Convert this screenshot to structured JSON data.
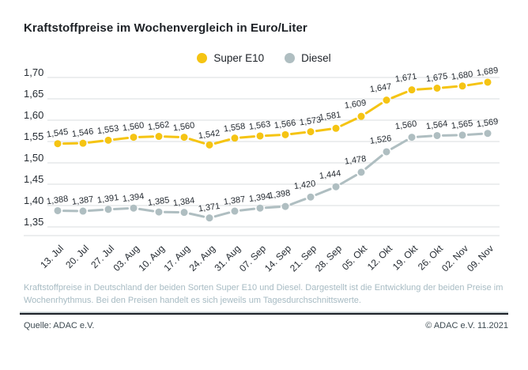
{
  "title": "Kraftstoffpreise im Wochenvergleich in Euro/Liter",
  "legend": [
    {
      "label": "Super E10",
      "color": "#F5C413"
    },
    {
      "label": "Diesel",
      "color": "#AFBEC1"
    }
  ],
  "chart_data": {
    "type": "line",
    "title": "Kraftstoffpreise im Wochenvergleich in Euro/Liter",
    "x": [
      "13. Jul",
      "20. Jul",
      "27. Jul",
      "03. Aug",
      "10. Aug",
      "17. Aug",
      "24. Aug",
      "31. Aug",
      "07. Sep",
      "14. Sep",
      "21. Sep",
      "28. Sep",
      "05. Okt",
      "12. Okt",
      "19. Okt",
      "26. Okt",
      "02. Nov",
      "09. Nov"
    ],
    "series": [
      {
        "name": "Super E10",
        "color": "#F5C413",
        "values": [
          1.545,
          1.546,
          1.553,
          1.56,
          1.562,
          1.56,
          1.542,
          1.558,
          1.563,
          1.566,
          1.573,
          1.581,
          1.609,
          1.647,
          1.671,
          1.675,
          1.68,
          1.689
        ]
      },
      {
        "name": "Diesel",
        "color": "#AFBEC1",
        "values": [
          1.388,
          1.387,
          1.391,
          1.394,
          1.385,
          1.384,
          1.371,
          1.387,
          1.394,
          1.398,
          1.42,
          1.444,
          1.478,
          1.526,
          1.56,
          1.564,
          1.565,
          1.569
        ]
      }
    ],
    "ylim": [
      1.35,
      1.7
    ],
    "ytick_labels": [
      "1,70",
      "1,65",
      "1,60",
      "1,55",
      "1,50",
      "1,45",
      "1,40",
      "1,35"
    ],
    "grid": true,
    "legend_position": "top-center",
    "value_labels": "shown above every point, decimal comma, 3 digits",
    "grid_color": "#D8DDDF",
    "label_color": "#262c33"
  },
  "footnote": "Kraftstoffpreise in Deutschland der beiden Sorten Super E10 und Diesel. Dargestellt ist die Entwicklung der beiden Preise im Wochenrhythmus. Bei den Preisen handelt es sich jeweils um Tagesdurchschnittswerte.",
  "source": "Quelle: ADAC e.V.",
  "copyright": "© ADAC e.V. 11.2021"
}
